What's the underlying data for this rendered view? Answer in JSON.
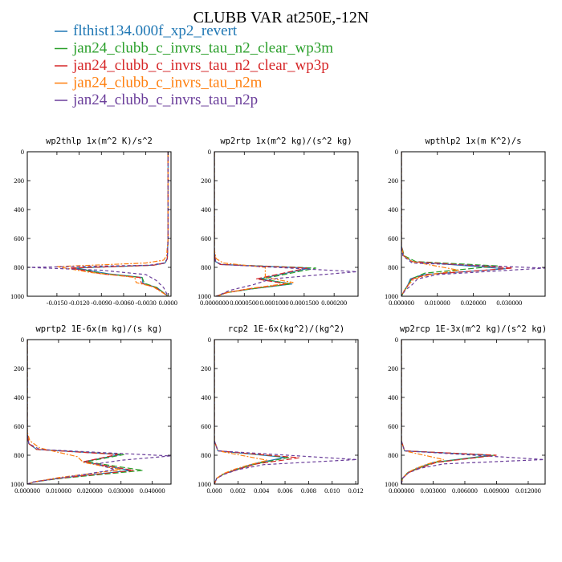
{
  "title": "CLUBB VAR at250E,-12N",
  "legend": [
    {
      "label": "flthist134.000f_xp2_revert",
      "color": "#1f77b4"
    },
    {
      "label": "jan24_clubb_c_invrs_tau_n2_clear_wp3m",
      "color": "#2ca02c"
    },
    {
      "label": "jan24_clubb_c_invrs_tau_n2_clear_wp3p",
      "color": "#d62728"
    },
    {
      "label": "jan24_clubb_c_invrs_tau_n2m",
      "color": "#ff7f0e"
    },
    {
      "label": "jan24_clubb_c_invrs_tau_n2p",
      "color": "#6a3d9a"
    }
  ],
  "chart_data": [
    {
      "type": "line",
      "title": "wp2thlp  1x(m^2 K)/s^2",
      "xlim": [
        -0.019,
        0.0004
      ],
      "ylim": [
        1000,
        0
      ],
      "xticks": [
        -0.015,
        -0.012,
        -0.009,
        -0.006,
        -0.003,
        0.0
      ],
      "xtick_labels": [
        "-0.0150",
        "-0.0120",
        "-0.0090",
        "-0.0060",
        "-0.0030",
        "0.0000"
      ],
      "yticks": [
        0,
        200,
        400,
        600,
        800,
        1000
      ],
      "ytick_labels": [
        "0",
        "200",
        "400",
        "600",
        "800",
        "1000"
      ],
      "series": [
        {
          "x": [
            0.0,
            0.0,
            -0.0001,
            -0.0004,
            -0.002,
            -0.0125,
            -0.008,
            -0.0035,
            -0.0034,
            -0.0015,
            0.0
          ],
          "y": [
            0,
            600,
            740,
            770,
            785,
            805,
            845,
            870,
            910,
            940,
            1000
          ]
        },
        {
          "x": [
            0.0,
            0.0,
            -0.0001,
            -0.0004,
            -0.002,
            -0.0128,
            -0.0085,
            -0.0035,
            -0.0032,
            -0.0015,
            0.0
          ],
          "y": [
            0,
            600,
            740,
            770,
            785,
            805,
            845,
            870,
            910,
            940,
            1000
          ]
        },
        {
          "x": [
            0.0,
            0.0,
            -0.0001,
            -0.0004,
            -0.002,
            -0.0132,
            -0.009,
            -0.0038,
            -0.0036,
            -0.0017,
            0.0
          ],
          "y": [
            0,
            600,
            740,
            770,
            785,
            805,
            845,
            870,
            910,
            940,
            1000
          ]
        },
        {
          "x": [
            0.0,
            0.0,
            -0.0002,
            -0.0006,
            -0.003,
            -0.015,
            -0.0105,
            -0.0045,
            -0.0043,
            -0.002,
            0.0
          ],
          "y": [
            0,
            600,
            720,
            750,
            770,
            795,
            835,
            870,
            905,
            935,
            1000
          ]
        },
        {
          "x": [
            0.0,
            0.0,
            -0.0001,
            -0.0005,
            -0.0025,
            -0.0189,
            -0.009,
            -0.003,
            -0.0016,
            -0.0006,
            0.0
          ],
          "y": [
            0,
            600,
            740,
            770,
            785,
            800,
            820,
            850,
            890,
            940,
            1000
          ]
        }
      ]
    },
    {
      "type": "line",
      "title": "wp2rtp  1x(m^2 kg)/(s^2 kg)",
      "xlim": [
        0.0,
        0.00024
      ],
      "ylim": [
        1000,
        0
      ],
      "xticks": [
        0.0,
        5e-05,
        0.0001,
        0.00015,
        0.0002
      ],
      "xtick_labels": [
        "0.0000000",
        "0.0000500",
        "0.0001000",
        "0.0001500",
        "0.000200"
      ],
      "yticks": [
        0,
        200,
        400,
        600,
        800,
        1000
      ],
      "ytick_labels": [
        "0",
        "200",
        "400",
        "600",
        "800",
        "1000"
      ],
      "series": [
        {
          "x": [
            0.0,
            0.0,
            2e-06,
            1e-05,
            0.00016,
            7.5e-05,
            0.00013,
            6e-05,
            2e-05,
            3e-06
          ],
          "y": [
            0,
            700,
            760,
            780,
            805,
            880,
            915,
            950,
            975,
            1000
          ]
        },
        {
          "x": [
            0.0,
            0.0,
            2e-06,
            1e-05,
            0.00017,
            8e-05,
            0.000128,
            6e-05,
            2e-05,
            3e-06
          ],
          "y": [
            0,
            700,
            760,
            780,
            805,
            880,
            915,
            950,
            975,
            1000
          ]
        },
        {
          "x": [
            0.0,
            0.0,
            2e-06,
            1e-05,
            0.000155,
            7e-05,
            0.000122,
            5.5e-05,
            2e-05,
            3e-06
          ],
          "y": [
            0,
            700,
            760,
            780,
            805,
            880,
            915,
            950,
            975,
            1000
          ]
        },
        {
          "x": [
            0.0,
            0.0,
            3e-06,
            1.5e-05,
            8.5e-05,
            8.5e-05,
            0.000132,
            6.2e-05,
            2.2e-05,
            4e-06
          ],
          "y": [
            0,
            680,
            740,
            770,
            800,
            870,
            905,
            945,
            975,
            1000
          ]
        },
        {
          "x": [
            0.0,
            0.0,
            2e-06,
            1.2e-05,
            0.000238,
            9.5e-05,
            6.5e-05,
            2.5e-05,
            4e-06
          ],
          "y": [
            0,
            700,
            760,
            780,
            830,
            880,
            920,
            960,
            1000
          ]
        }
      ]
    },
    {
      "type": "line",
      "title": "wpthlp2  1x(m K^2)/s",
      "xlim": [
        0.0,
        0.04
      ],
      "ylim": [
        1000,
        0
      ],
      "xticks": [
        0.0,
        0.01,
        0.02,
        0.03
      ],
      "xtick_labels": [
        "0.000000",
        "0.010000",
        "0.020000",
        "0.030000"
      ],
      "yticks": [
        0,
        200,
        400,
        600,
        800,
        1000
      ],
      "ytick_labels": [
        "0",
        "200",
        "400",
        "600",
        "800",
        "1000"
      ],
      "series": [
        {
          "x": [
            0.0,
            0.0,
            0.0006,
            0.003,
            0.029,
            0.006,
            0.0025,
            0.0018,
            0.0008,
            0.0
          ],
          "y": [
            0,
            650,
            720,
            760,
            810,
            850,
            880,
            920,
            960,
            1000
          ]
        },
        {
          "x": [
            0.0,
            0.0,
            0.0008,
            0.004,
            0.027,
            0.0065,
            0.0028,
            0.002,
            0.0009,
            0.0
          ],
          "y": [
            0,
            650,
            720,
            760,
            790,
            840,
            880,
            920,
            960,
            1000
          ]
        },
        {
          "x": [
            0.0,
            0.0,
            0.0006,
            0.003,
            0.031,
            0.007,
            0.003,
            0.002,
            0.0008,
            0.0
          ],
          "y": [
            0,
            650,
            720,
            760,
            805,
            850,
            880,
            920,
            960,
            1000
          ]
        },
        {
          "x": [
            0.0,
            0.0,
            0.0006,
            0.003,
            0.016,
            0.008,
            0.0035,
            0.002,
            0.0008,
            0.0
          ],
          "y": [
            0,
            650,
            720,
            760,
            820,
            850,
            880,
            920,
            960,
            1000
          ]
        },
        {
          "x": [
            0.0,
            0.0,
            0.0004,
            0.003,
            0.0399,
            0.01,
            0.0045,
            0.003,
            0.001,
            0.0
          ],
          "y": [
            0,
            650,
            720,
            770,
            805,
            850,
            880,
            920,
            960,
            1000
          ]
        }
      ]
    },
    {
      "type": "line",
      "title": "wprtp2  1E-6x(m kg)/(s kg)",
      "xlim": [
        0.0,
        0.046
      ],
      "ylim": [
        1000,
        0
      ],
      "xticks": [
        0.0,
        0.01,
        0.02,
        0.03,
        0.04
      ],
      "xtick_labels": [
        "0.000000",
        "0.010000",
        "0.020000",
        "0.030000",
        "0.040000"
      ],
      "yticks": [
        0,
        200,
        400,
        600,
        800,
        1000
      ],
      "ytick_labels": [
        "0",
        "200",
        "400",
        "600",
        "800",
        "1000"
      ],
      "series": [
        {
          "x": [
            0.0,
            0.0,
            0.0005,
            0.003,
            0.03,
            0.018,
            0.033,
            0.01,
            0.002,
            0.0
          ],
          "y": [
            0,
            650,
            720,
            760,
            795,
            845,
            905,
            960,
            985,
            1000
          ]
        },
        {
          "x": [
            0.0,
            0.0,
            0.0005,
            0.003,
            0.031,
            0.019,
            0.037,
            0.011,
            0.002,
            0.0
          ],
          "y": [
            0,
            650,
            720,
            760,
            795,
            845,
            905,
            960,
            985,
            1000
          ]
        },
        {
          "x": [
            0.0,
            0.0,
            0.0005,
            0.003,
            0.029,
            0.018,
            0.034,
            0.01,
            0.002,
            0.0
          ],
          "y": [
            0,
            650,
            720,
            760,
            795,
            845,
            905,
            960,
            985,
            1000
          ]
        },
        {
          "x": [
            0.0,
            0.0,
            0.0008,
            0.004,
            0.016,
            0.018,
            0.03,
            0.01,
            0.002,
            0.0
          ],
          "y": [
            0,
            640,
            700,
            750,
            810,
            850,
            900,
            955,
            985,
            1000
          ]
        },
        {
          "x": [
            0.0,
            0.0,
            0.0005,
            0.004,
            0.0458,
            0.03,
            0.022,
            0.028,
            0.01,
            0.002,
            0.0
          ],
          "y": [
            0,
            650,
            720,
            760,
            805,
            835,
            860,
            900,
            960,
            985,
            1000
          ]
        }
      ]
    },
    {
      "type": "line",
      "title": "rcp2  1E-6x(kg^2)/(kg^2)",
      "xlim": [
        0.0,
        0.0122
      ],
      "ylim": [
        1000,
        0
      ],
      "xticks": [
        0.0,
        0.002,
        0.004,
        0.006,
        0.008,
        0.01,
        0.012
      ],
      "xtick_labels": [
        "0.000",
        "0.002",
        "0.004",
        "0.006",
        "0.008",
        "0.010",
        "0.012"
      ],
      "yticks": [
        0,
        200,
        400,
        600,
        800,
        1000
      ],
      "ytick_labels": [
        "0",
        "200",
        "400",
        "600",
        "800",
        "1000"
      ],
      "series": [
        {
          "x": [
            0.0,
            0.0,
            0.0003,
            0.006,
            0.0033,
            0.0018,
            0.0008,
            0.0002,
            0.0
          ],
          "y": [
            0,
            700,
            770,
            815,
            860,
            900,
            930,
            960,
            1000
          ]
        },
        {
          "x": [
            0.0,
            0.0,
            0.0003,
            0.0064,
            0.0035,
            0.0019,
            0.0008,
            0.0002,
            0.0
          ],
          "y": [
            0,
            700,
            770,
            815,
            860,
            900,
            930,
            960,
            1000
          ]
        },
        {
          "x": [
            0.0,
            0.0,
            0.0003,
            0.0072,
            0.0036,
            0.0019,
            0.0008,
            0.0002,
            0.0
          ],
          "y": [
            0,
            700,
            770,
            818,
            860,
            900,
            930,
            960,
            1000
          ]
        },
        {
          "x": [
            0.0,
            0.0,
            0.0003,
            0.0045,
            0.0028,
            0.0016,
            0.0007,
            0.0002,
            0.0
          ],
          "y": [
            0,
            700,
            770,
            835,
            870,
            900,
            930,
            960,
            1000
          ]
        },
        {
          "x": [
            0.0,
            0.0,
            0.0003,
            0.0121,
            0.0042,
            0.002,
            0.0009,
            0.0002,
            0.0
          ],
          "y": [
            0,
            700,
            770,
            830,
            865,
            900,
            930,
            960,
            1000
          ]
        }
      ]
    },
    {
      "type": "line",
      "title": "wp2rcp  1E-3x(m^2 kg)/(s^2 kg)",
      "xlim": [
        0.0,
        0.0136
      ],
      "ylim": [
        1000,
        0
      ],
      "xticks": [
        0.0,
        0.003,
        0.006,
        0.009,
        0.012
      ],
      "xtick_labels": [
        "0.000000",
        "0.003000",
        "0.006000",
        "0.009000",
        "0.012000"
      ],
      "yticks": [
        0,
        200,
        400,
        600,
        800,
        1000
      ],
      "ytick_labels": [
        "0",
        "200",
        "400",
        "600",
        "800",
        "1000"
      ],
      "series": [
        {
          "x": [
            0.0,
            0.0,
            0.0003,
            0.0085,
            0.003,
            0.0015,
            0.0006,
            0.0001,
            0.0
          ],
          "y": [
            0,
            700,
            770,
            800,
            850,
            890,
            920,
            960,
            1000
          ]
        },
        {
          "x": [
            0.0,
            0.0,
            0.0003,
            0.0088,
            0.0031,
            0.0016,
            0.0006,
            0.0001,
            0.0
          ],
          "y": [
            0,
            700,
            770,
            800,
            850,
            890,
            920,
            960,
            1000
          ]
        },
        {
          "x": [
            0.0,
            0.0,
            0.0003,
            0.009,
            0.0033,
            0.0017,
            0.0007,
            0.0001,
            0.0
          ],
          "y": [
            0,
            700,
            770,
            800,
            850,
            890,
            920,
            960,
            1000
          ]
        },
        {
          "x": [
            0.0,
            0.0,
            0.0003,
            0.004,
            0.0025,
            0.0014,
            0.0006,
            0.0001,
            0.0
          ],
          "y": [
            0,
            700,
            770,
            830,
            860,
            890,
            920,
            960,
            1000
          ]
        },
        {
          "x": [
            0.0,
            0.0,
            0.0003,
            0.0135,
            0.004,
            0.0018,
            0.0007,
            0.0001,
            0.0
          ],
          "y": [
            0,
            700,
            770,
            830,
            860,
            890,
            920,
            960,
            1000
          ]
        }
      ]
    }
  ]
}
